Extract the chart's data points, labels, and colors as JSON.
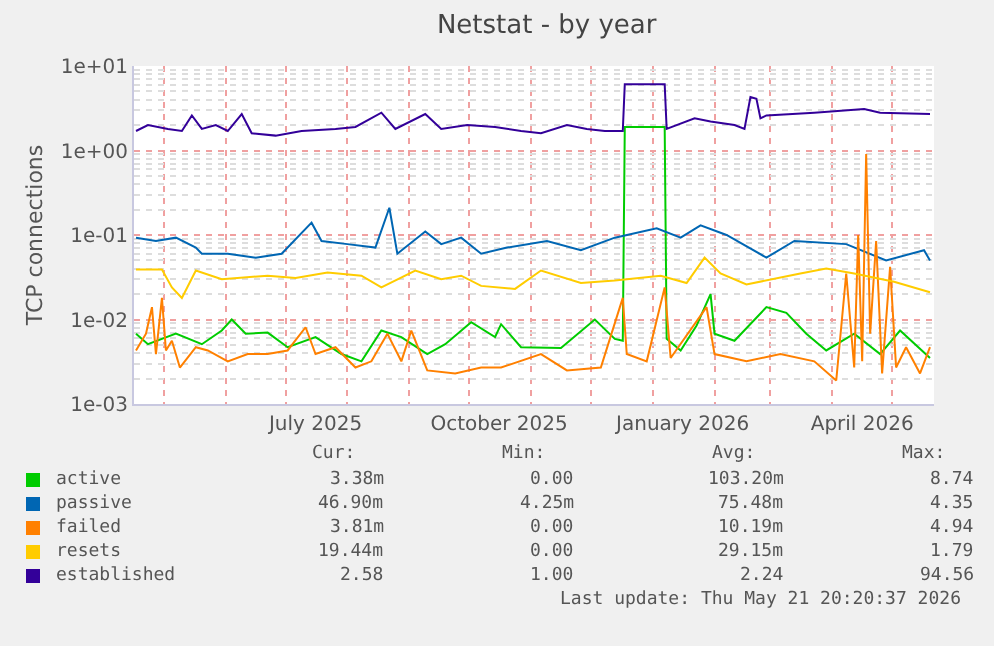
{
  "chart_data": {
    "type": "line",
    "title": "Netstat - by year",
    "ylabel": "TCP connections",
    "log": "y",
    "grid": true,
    "legend": "bottom left",
    "xlim": [
      "2025-04-16",
      "2026-05-22"
    ],
    "xticks": [
      {
        "value": "2025-07-16",
        "label": "July 2025"
      },
      {
        "value": "2025-10-16",
        "label": "October 2025"
      },
      {
        "value": "2026-01-16",
        "label": "January 2026"
      },
      {
        "value": "2026-04-16",
        "label": "April 2026"
      }
    ],
    "ylim": [
      0.001,
      10
    ],
    "yticks": [
      {
        "value": 0.001,
        "label": "1e-03"
      },
      {
        "value": 0.01,
        "label": "1e-02"
      },
      {
        "value": 0.1,
        "label": "1e-01"
      },
      {
        "value": 1,
        "label": "1e+00"
      },
      {
        "value": 10,
        "label": "1e+01"
      }
    ],
    "series": [
      {
        "name": "active",
        "color": "#00cc00",
        "x": [
          "2025-04-17",
          "2025-04-23",
          "2025-05-07",
          "2025-05-20",
          "2025-05-30",
          "2025-06-04",
          "2025-06-11",
          "2025-06-22",
          "2025-07-02",
          "2025-07-16",
          "2025-07-29",
          "2025-08-08",
          "2025-08-18",
          "2025-08-28",
          "2025-09-10",
          "2025-09-19",
          "2025-10-02",
          "2025-10-14",
          "2025-10-17",
          "2025-10-27",
          "2025-11-16",
          "2025-12-03",
          "2025-12-13",
          "2025-12-17",
          "2025-12-18",
          "2026-01-07",
          "2026-01-08",
          "2026-01-15",
          "2026-01-23",
          "2026-01-30",
          "2026-02-01",
          "2026-02-11",
          "2026-02-27",
          "2026-03-09",
          "2026-03-19",
          "2026-03-29",
          "2026-04-12",
          "2026-04-25",
          "2026-05-05",
          "2026-05-20"
        ],
        "values": [
          0.0068,
          0.0051,
          0.0068,
          0.0051,
          0.0074,
          0.01,
          0.0068,
          0.007,
          0.0047,
          0.0062,
          0.0039,
          0.0032,
          0.0074,
          0.0062,
          0.0039,
          0.0051,
          0.0093,
          0.0062,
          0.0088,
          0.0047,
          0.0046,
          0.01,
          0.0059,
          0.0056,
          1.9,
          1.9,
          0.0059,
          0.0043,
          0.0085,
          0.02,
          0.0068,
          0.0056,
          0.014,
          0.012,
          0.0068,
          0.0043,
          0.0068,
          0.0039,
          0.0074,
          0.0035
        ]
      },
      {
        "name": "passive",
        "color": "#0066b3",
        "x": [
          "2025-04-17",
          "2025-04-27",
          "2025-05-07",
          "2025-05-17",
          "2025-05-20",
          "2025-06-02",
          "2025-06-16",
          "2025-06-29",
          "2025-07-14",
          "2025-07-19",
          "2025-08-01",
          "2025-08-15",
          "2025-08-22",
          "2025-08-26",
          "2025-09-09",
          "2025-09-17",
          "2025-09-27",
          "2025-10-07",
          "2025-10-20",
          "2025-11-09",
          "2025-11-26",
          "2025-12-13",
          "2026-01-03",
          "2026-01-15",
          "2026-01-25",
          "2026-02-07",
          "2026-02-27",
          "2026-03-13",
          "2026-04-08",
          "2026-04-28",
          "2026-05-17",
          "2026-05-20"
        ],
        "values": [
          0.093,
          0.085,
          0.093,
          0.071,
          0.06,
          0.06,
          0.054,
          0.06,
          0.14,
          0.085,
          0.078,
          0.071,
          0.21,
          0.06,
          0.11,
          0.078,
          0.093,
          0.06,
          0.071,
          0.085,
          0.066,
          0.093,
          0.12,
          0.093,
          0.13,
          0.1,
          0.054,
          0.085,
          0.078,
          0.05,
          0.066,
          0.05
        ]
      },
      {
        "name": "failed",
        "color": "#ff8000",
        "x": [
          "2025-04-17",
          "2025-04-22",
          "2025-04-25",
          "2025-04-27",
          "2025-04-30",
          "2025-05-02",
          "2025-05-05",
          "2025-05-09",
          "2025-05-17",
          "2025-05-23",
          "2025-06-02",
          "2025-06-12",
          "2025-06-22",
          "2025-07-02",
          "2025-07-11",
          "2025-07-16",
          "2025-07-26",
          "2025-08-05",
          "2025-08-13",
          "2025-08-21",
          "2025-08-28",
          "2025-09-02",
          "2025-09-10",
          "2025-09-24",
          "2025-10-07",
          "2025-10-17",
          "2025-11-06",
          "2025-11-19",
          "2025-12-06",
          "2025-12-17",
          "2025-12-19",
          "2025-12-29",
          "2026-01-07",
          "2026-01-10",
          "2026-01-28",
          "2026-02-01",
          "2026-02-17",
          "2026-03-06",
          "2026-03-23",
          "2026-04-03",
          "2026-04-08",
          "2026-04-12",
          "2026-04-14",
          "2026-04-16",
          "2026-04-18",
          "2026-04-20",
          "2026-04-23",
          "2026-04-26",
          "2026-04-30",
          "2026-05-03",
          "2026-05-08",
          "2026-05-15",
          "2026-05-20"
        ],
        "values": [
          0.0043,
          0.0068,
          0.014,
          0.0039,
          0.018,
          0.0043,
          0.0056,
          0.0027,
          0.0047,
          0.0043,
          0.0032,
          0.0039,
          0.0039,
          0.0043,
          0.0081,
          0.0039,
          0.0047,
          0.0027,
          0.0032,
          0.0068,
          0.0032,
          0.0074,
          0.0025,
          0.0023,
          0.0027,
          0.0027,
          0.0039,
          0.0025,
          0.0027,
          0.018,
          0.0039,
          0.0032,
          0.024,
          0.0035,
          0.014,
          0.0039,
          0.0032,
          0.0039,
          0.0032,
          0.0019,
          0.035,
          0.0027,
          0.1,
          0.0032,
          0.91,
          0.0068,
          0.085,
          0.0023,
          0.042,
          0.0027,
          0.0047,
          0.0023,
          0.0047
        ]
      },
      {
        "name": "resets",
        "color": "#ffcc00",
        "x": [
          "2025-04-17",
          "2025-04-30",
          "2025-05-05",
          "2025-05-10",
          "2025-05-17",
          "2025-05-30",
          "2025-06-22",
          "2025-07-06",
          "2025-07-22",
          "2025-08-08",
          "2025-08-18",
          "2025-09-04",
          "2025-09-17",
          "2025-09-27",
          "2025-10-07",
          "2025-10-24",
          "2025-11-06",
          "2025-11-26",
          "2025-12-13",
          "2026-01-05",
          "2026-01-18",
          "2026-01-27",
          "2026-02-04",
          "2026-02-17",
          "2026-03-16",
          "2026-03-29",
          "2026-04-12",
          "2026-05-02",
          "2026-05-20"
        ],
        "values": [
          0.039,
          0.039,
          0.024,
          0.018,
          0.038,
          0.03,
          0.033,
          0.031,
          0.036,
          0.033,
          0.024,
          0.038,
          0.03,
          0.033,
          0.025,
          0.023,
          0.038,
          0.027,
          0.029,
          0.033,
          0.027,
          0.054,
          0.035,
          0.026,
          0.035,
          0.04,
          0.035,
          0.028,
          0.021
        ]
      },
      {
        "name": "established",
        "color": "#330099",
        "x": [
          "2025-04-17",
          "2025-04-23",
          "2025-05-03",
          "2025-05-10",
          "2025-05-15",
          "2025-05-20",
          "2025-05-27",
          "2025-06-02",
          "2025-06-09",
          "2025-06-14",
          "2025-06-26",
          "2025-07-09",
          "2025-07-26",
          "2025-08-05",
          "2025-08-18",
          "2025-08-25",
          "2025-09-09",
          "2025-09-17",
          "2025-09-30",
          "2025-10-14",
          "2025-10-27",
          "2025-11-06",
          "2025-11-19",
          "2025-11-29",
          "2025-12-08",
          "2025-12-17",
          "2025-12-18",
          "2026-01-07",
          "2026-01-08",
          "2026-01-22",
          "2026-01-30",
          "2026-02-11",
          "2026-02-16",
          "2026-02-19",
          "2026-02-22",
          "2026-02-24",
          "2026-02-27",
          "2026-03-23",
          "2026-04-17",
          "2026-04-25",
          "2026-05-20"
        ],
        "values": [
          1.7,
          2.0,
          1.8,
          1.7,
          2.6,
          1.8,
          2.0,
          1.7,
          2.7,
          1.6,
          1.5,
          1.7,
          1.8,
          1.9,
          2.8,
          1.8,
          2.7,
          1.8,
          2.0,
          1.9,
          1.7,
          1.6,
          2.0,
          1.8,
          1.7,
          1.7,
          6.1,
          6.1,
          1.8,
          2.4,
          2.2,
          2.0,
          1.8,
          4.3,
          4.1,
          2.4,
          2.6,
          2.8,
          3.1,
          2.8,
          2.7
        ]
      }
    ],
    "annotations": [
      "Cur:",
      "Min:",
      "Avg:",
      "Max:",
      "3.38m",
      "0.00",
      "103.20m",
      "8.74",
      "46.90m",
      "4.25m",
      "75.48m",
      "4.35",
      "3.81m",
      "0.00",
      "10.19m",
      "4.94",
      "19.44m",
      "0.00",
      "29.15m",
      "1.79",
      "2.58",
      "1.00",
      "2.24",
      "94.56",
      "Last update: Thu May 21 20:20:37 2026"
    ]
  }
}
